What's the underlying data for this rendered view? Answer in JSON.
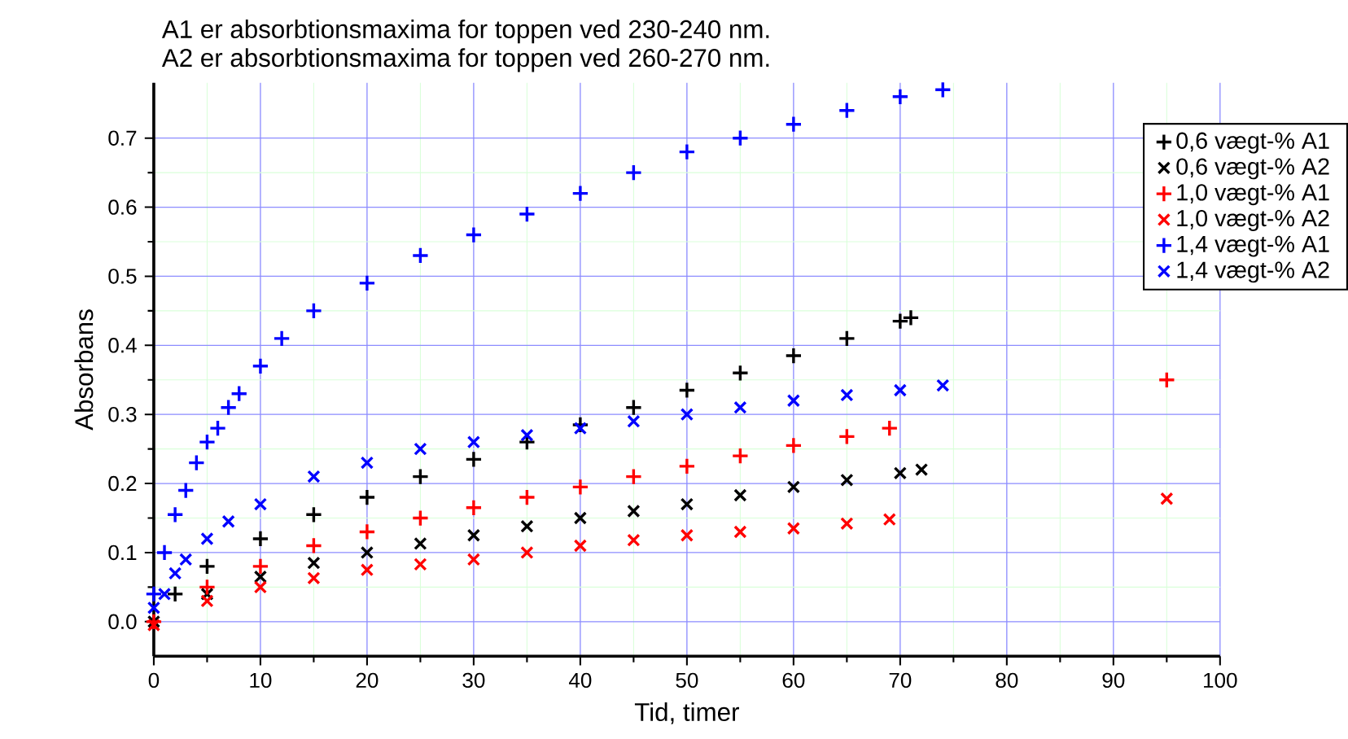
{
  "chart_data": {
    "type": "scatter",
    "title": "A1 er absorbtionsmaxima for toppen ved 230-240 nm.",
    "subtitle": "A2 er absorbtionsmaxima for toppen ved 260-270 nm.",
    "xlabel": "Tid, timer",
    "ylabel": "Absorbans",
    "xlim": [
      0,
      100
    ],
    "ylim": [
      -0.05,
      0.78
    ],
    "xticks": [
      0,
      10,
      20,
      30,
      40,
      50,
      60,
      70,
      80,
      90,
      100
    ],
    "yticks": [
      {
        "value": 0,
        "label": "0.0"
      },
      0.1,
      0.2,
      0.3,
      0.4,
      0.5,
      0.6,
      0.7
    ],
    "grid": true,
    "legend": "top right",
    "series": [
      {
        "name": "0,6 vægt-% A1",
        "color": "#000000",
        "marker": "plus",
        "x": [
          2,
          5,
          10,
          15,
          20,
          25,
          30,
          35,
          40,
          45,
          50,
          55,
          60,
          65,
          70,
          71
        ],
        "values": [
          0.04,
          0.08,
          0.12,
          0.155,
          0.18,
          0.21,
          0.235,
          0.26,
          0.285,
          0.31,
          0.335,
          0.36,
          0.385,
          0.41,
          0.435,
          0.44
        ]
      },
      {
        "name": "0,6 vægt-% A2",
        "color": "#000000",
        "marker": "cross",
        "x": [
          0,
          5,
          10,
          15,
          20,
          25,
          30,
          35,
          40,
          45,
          50,
          55,
          60,
          65,
          70,
          72
        ],
        "values": [
          0.0,
          0.04,
          0.065,
          0.085,
          0.1,
          0.113,
          0.125,
          0.138,
          0.15,
          0.16,
          0.17,
          0.183,
          0.195,
          0.205,
          0.215,
          0.22
        ]
      },
      {
        "name": "1,0 vægt-% A1",
        "color": "#ff0000",
        "marker": "plus",
        "x": [
          0,
          5,
          10,
          15,
          20,
          25,
          30,
          35,
          40,
          45,
          50,
          55,
          60,
          65,
          69,
          95
        ],
        "values": [
          0.0,
          0.05,
          0.08,
          0.11,
          0.13,
          0.15,
          0.165,
          0.18,
          0.195,
          0.21,
          0.225,
          0.24,
          0.255,
          0.268,
          0.28,
          0.35
        ]
      },
      {
        "name": "1,0 vægt-% A2",
        "color": "#ff0000",
        "marker": "cross",
        "x": [
          0,
          5,
          10,
          15,
          20,
          25,
          30,
          35,
          40,
          45,
          50,
          55,
          60,
          65,
          69,
          95
        ],
        "values": [
          -0.005,
          0.03,
          0.05,
          0.063,
          0.075,
          0.083,
          0.09,
          0.1,
          0.11,
          0.118,
          0.125,
          0.13,
          0.135,
          0.142,
          0.148,
          0.178
        ]
      },
      {
        "name": "1,4 vægt-% A1",
        "color": "#0000ff",
        "marker": "plus",
        "x": [
          0,
          1,
          2,
          3,
          4,
          5,
          6,
          7,
          8,
          10,
          12,
          15,
          20,
          25,
          30,
          35,
          40,
          45,
          50,
          55,
          60,
          65,
          70,
          74
        ],
        "values": [
          0.04,
          0.1,
          0.155,
          0.19,
          0.23,
          0.26,
          0.28,
          0.31,
          0.33,
          0.37,
          0.41,
          0.45,
          0.49,
          0.53,
          0.56,
          0.59,
          0.62,
          0.65,
          0.68,
          0.7,
          0.72,
          0.74,
          0.76,
          0.77
        ]
      },
      {
        "name": "1,4 vægt-% A2",
        "color": "#0000ff",
        "marker": "cross",
        "x": [
          0,
          1,
          2,
          3,
          5,
          7,
          10,
          15,
          20,
          25,
          30,
          35,
          40,
          45,
          50,
          55,
          60,
          65,
          70,
          74
        ],
        "values": [
          0.02,
          0.04,
          0.07,
          0.09,
          0.12,
          0.145,
          0.17,
          0.21,
          0.23,
          0.25,
          0.26,
          0.27,
          0.28,
          0.29,
          0.3,
          0.31,
          0.32,
          0.328,
          0.335,
          0.342
        ]
      }
    ]
  }
}
